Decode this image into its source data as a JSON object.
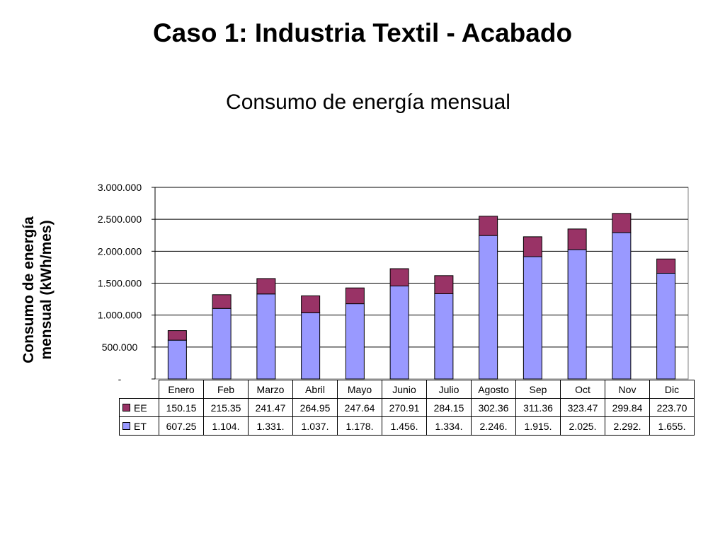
{
  "slide_title": "Caso 1: Industria Textil - Acabado",
  "colors": {
    "EE": "#993366",
    "ET": "#9999FF",
    "grid": "#000000"
  },
  "chart_data": {
    "type": "bar",
    "stacked": true,
    "title": "Consumo de energía mensual",
    "ylabel": "Consumo de energía mensual (kWh/mes)",
    "xlabel": "",
    "ylim": [
      0,
      3000000
    ],
    "yticks": [
      0,
      500000,
      1000000,
      1500000,
      2000000,
      2500000,
      3000000
    ],
    "ytick_labels": [
      "-",
      "500.000",
      "1.000.000",
      "1.500.000",
      "2.000.000",
      "2.500.000",
      "3.000.000"
    ],
    "grid": true,
    "legend": "data-table",
    "categories": [
      "Enero",
      "Feb",
      "Marzo",
      "Abril",
      "Mayo",
      "Junio",
      "Julio",
      "Agosto",
      "Sep",
      "Oct",
      "Nov",
      "Dic"
    ],
    "series": [
      {
        "name": "ET",
        "values": [
          607250,
          1104000,
          1331000,
          1037000,
          1178000,
          1456000,
          1334000,
          2246000,
          1915000,
          2025000,
          2292000,
          1655000
        ],
        "table_labels": [
          "607.25",
          "1.104.",
          "1.331.",
          "1.037.",
          "1.178.",
          "1.456.",
          "1.334.",
          "2.246.",
          "1.915.",
          "2.025.",
          "2.292.",
          "1.655."
        ]
      },
      {
        "name": "EE",
        "values": [
          150150,
          215350,
          241470,
          264950,
          247640,
          270910,
          284150,
          302360,
          311360,
          323470,
          299840,
          223700
        ],
        "table_labels": [
          "150.15",
          "215.35",
          "241.47",
          "264.95",
          "247.64",
          "270.91",
          "284.15",
          "302.36",
          "311.36",
          "323.47",
          "299.84",
          "223.70"
        ]
      }
    ]
  }
}
